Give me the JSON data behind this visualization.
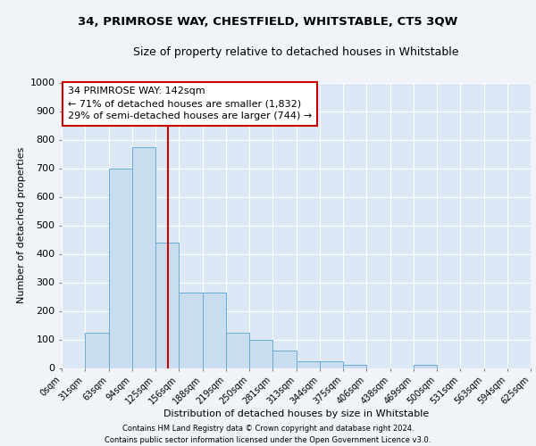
{
  "title1": "34, PRIMROSE WAY, CHESTFIELD, WHITSTABLE, CT5 3QW",
  "title2": "Size of property relative to detached houses in Whitstable",
  "xlabel": "Distribution of detached houses by size in Whitstable",
  "ylabel": "Number of detached properties",
  "bin_edges": [
    0,
    31,
    63,
    94,
    125,
    156,
    188,
    219,
    250,
    281,
    313,
    344,
    375,
    406,
    438,
    469,
    500,
    531,
    563,
    594,
    625
  ],
  "bar_heights": [
    0,
    125,
    700,
    775,
    438,
    265,
    265,
    125,
    100,
    60,
    25,
    25,
    10,
    0,
    0,
    10,
    0,
    0,
    0,
    0
  ],
  "bar_color": "#c8ddf0",
  "bar_edge_color": "#6aacd6",
  "vline_x": 142,
  "vline_color": "#cc0000",
  "ylim": [
    0,
    1000
  ],
  "annotation_text": "34 PRIMROSE WAY: 142sqm\n← 71% of detached houses are smaller (1,832)\n29% of semi-detached houses are larger (744) →",
  "annotation_box_facecolor": "#ffffff",
  "annotation_box_edgecolor": "#cc0000",
  "footer1": "Contains HM Land Registry data © Crown copyright and database right 2024.",
  "footer2": "Contains public sector information licensed under the Open Government Licence v3.0.",
  "fig_bg_color": "#f0f4f8",
  "plot_bg_color": "#dce8f5",
  "grid_color": "#ffffff",
  "tick_labels": [
    "0sqm",
    "31sqm",
    "63sqm",
    "94sqm",
    "125sqm",
    "156sqm",
    "188sqm",
    "219sqm",
    "250sqm",
    "281sqm",
    "313sqm",
    "344sqm",
    "375sqm",
    "406sqm",
    "438sqm",
    "469sqm",
    "500sqm",
    "531sqm",
    "563sqm",
    "594sqm",
    "625sqm"
  ],
  "title1_fontsize": 9.5,
  "title2_fontsize": 9,
  "ylabel_fontsize": 8,
  "xlabel_fontsize": 8,
  "tick_fontsize": 7,
  "ann_fontsize": 8,
  "footer_fontsize": 6
}
